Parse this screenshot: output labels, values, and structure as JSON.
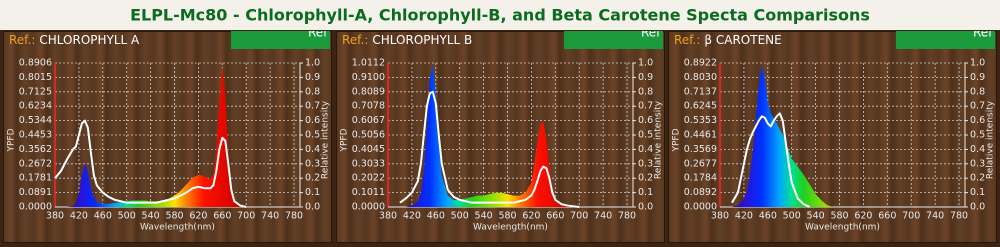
{
  "header": {
    "title": "ELPL-Mc80 - Chlorophyll-A, Chlorophyll-B, and Beta Carotene Specta Comparisons"
  },
  "chart_data": [
    {
      "type": "area",
      "ref_prefix": "Ref.:",
      "ref_name": "CHLOROPHYLL A",
      "button_label": "Ref",
      "x_label": "Wavelength(nm)",
      "y_label": "YPFD",
      "y2_label": "Relative intensity",
      "grid": true,
      "xlim": [
        380,
        790
      ],
      "xticks": [
        380,
        420,
        460,
        500,
        540,
        580,
        620,
        660,
        700,
        740,
        780
      ],
      "ylim": [
        0,
        0.8906
      ],
      "yticks": [
        {
          "value": 0,
          "label": "0.0000"
        },
        0.0891,
        0.1781,
        0.2672,
        0.3562,
        0.4453,
        0.5344,
        0.6234,
        0.7125,
        0.8015,
        0.8906
      ],
      "y2lim": [
        0,
        1
      ],
      "y2ticks": [
        {
          "value": 0,
          "label": "0.0"
        },
        0.1,
        0.2,
        0.3,
        0.4,
        0.5,
        0.6,
        0.7,
        0.8,
        0.9,
        {
          "value": 1,
          "label": "1.0"
        }
      ],
      "x": [
        380,
        390,
        400,
        410,
        415,
        420,
        425,
        430,
        435,
        440,
        445,
        450,
        460,
        470,
        480,
        490,
        500,
        510,
        520,
        530,
        540,
        550,
        560,
        570,
        580,
        590,
        600,
        610,
        620,
        630,
        640,
        645,
        650,
        655,
        660,
        665,
        670,
        675,
        680,
        690,
        700,
        720,
        740,
        760,
        780
      ],
      "series": [
        {
          "style": "area",
          "values": [
            0,
            0,
            0,
            0.005,
            0.02,
            0.08,
            0.2,
            0.27,
            0.22,
            0.12,
            0.06,
            0.03,
            0.02,
            0.02,
            0.025,
            0.03,
            0.035,
            0.04,
            0.04,
            0.04,
            0.035,
            0.035,
            0.04,
            0.05,
            0.07,
            0.1,
            0.14,
            0.18,
            0.2,
            0.19,
            0.17,
            0.2,
            0.35,
            0.65,
            0.87,
            0.7,
            0.35,
            0.12,
            0.05,
            0.01,
            0,
            0,
            0,
            0,
            0
          ]
        },
        {
          "style": "line",
          "color": "#ffffff",
          "axis": "y2",
          "values": [
            0.2,
            0.25,
            0.33,
            0.4,
            0.42,
            0.5,
            0.58,
            0.6,
            0.55,
            0.38,
            0.22,
            0.15,
            0.1,
            0.07,
            0.05,
            0.04,
            0.03,
            0.03,
            0.03,
            0.03,
            0.03,
            0.03,
            0.04,
            0.05,
            0.06,
            0.08,
            0.1,
            0.13,
            0.14,
            0.13,
            0.13,
            0.15,
            0.25,
            0.4,
            0.48,
            0.46,
            0.3,
            0.12,
            0.04,
            0.01,
            0,
            null,
            null,
            null,
            null
          ]
        }
      ]
    },
    {
      "type": "area",
      "ref_prefix": "Ref.:",
      "ref_name": "CHLOROPHYLL B",
      "button_label": "Ref",
      "x_label": "Wavelength(nm)",
      "y_label": "YPFD",
      "y2_label": "Relative intensity",
      "grid": true,
      "xlim": [
        380,
        790
      ],
      "xticks": [
        380,
        420,
        460,
        500,
        540,
        580,
        620,
        660,
        700,
        740,
        780
      ],
      "ylim": [
        0,
        1.0112
      ],
      "yticks": [
        {
          "value": 0,
          "label": "0.0000"
        },
        0.1011,
        0.2022,
        0.3033,
        0.4045,
        0.5056,
        0.6067,
        0.7078,
        0.8089,
        {
          "value": 0.91,
          "label": "0.9100"
        },
        1.0112
      ],
      "y2lim": [
        0,
        1
      ],
      "y2ticks": [
        {
          "value": 0,
          "label": "0.0"
        },
        0.1,
        0.2,
        0.3,
        0.4,
        0.5,
        0.6,
        0.7,
        0.8,
        0.9,
        {
          "value": 1,
          "label": "1.0"
        }
      ],
      "x": [
        380,
        390,
        400,
        410,
        420,
        430,
        435,
        440,
        445,
        450,
        455,
        460,
        465,
        470,
        480,
        490,
        500,
        510,
        520,
        530,
        540,
        550,
        560,
        570,
        580,
        590,
        600,
        610,
        620,
        625,
        630,
        635,
        640,
        645,
        650,
        655,
        660,
        670,
        680,
        700,
        720,
        740,
        760,
        780
      ],
      "series": [
        {
          "style": "area",
          "values": [
            0,
            0,
            0,
            0,
            0.01,
            0.04,
            0.1,
            0.25,
            0.55,
            0.9,
            1.0,
            0.8,
            0.45,
            0.22,
            0.08,
            0.05,
            0.05,
            0.06,
            0.07,
            0.08,
            0.08,
            0.09,
            0.1,
            0.1,
            0.09,
            0.08,
            0.08,
            0.1,
            0.17,
            0.3,
            0.45,
            0.58,
            0.6,
            0.48,
            0.28,
            0.12,
            0.05,
            0.02,
            0.01,
            0,
            0,
            0,
            0,
            0
          ]
        },
        {
          "style": "line",
          "color": "#ffffff",
          "axis": "y2",
          "values": [
            null,
            null,
            0.03,
            0.06,
            0.1,
            0.18,
            0.3,
            0.5,
            0.7,
            0.79,
            0.8,
            0.72,
            0.5,
            0.3,
            0.12,
            0.07,
            0.05,
            0.04,
            0.03,
            0.03,
            0.03,
            0.03,
            0.03,
            0.03,
            0.03,
            0.03,
            0.04,
            0.05,
            0.08,
            0.12,
            0.18,
            0.25,
            0.28,
            0.27,
            0.2,
            0.1,
            0.05,
            0.02,
            0.01,
            0,
            null,
            null,
            null,
            null
          ]
        }
      ]
    },
    {
      "type": "area",
      "ref_prefix": "Ref.:",
      "ref_name": "β CAROTENE",
      "button_label": "Ref",
      "x_label": "Wavelength(nm)",
      "y_label": "YPFD",
      "y2_label": "Relative intensity",
      "grid": true,
      "xlim": [
        380,
        790
      ],
      "xticks": [
        380,
        420,
        460,
        500,
        540,
        580,
        620,
        660,
        700,
        740,
        780
      ],
      "ylim": [
        0,
        0.8922
      ],
      "yticks": [
        {
          "value": 0,
          "label": "0.0000"
        },
        0.0892,
        0.1784,
        0.2677,
        0.3569,
        0.4461,
        0.5353,
        0.6245,
        0.7137,
        {
          "value": 0.803,
          "label": "0.8030"
        },
        0.8922
      ],
      "y2lim": [
        0,
        1
      ],
      "y2ticks": [
        {
          "value": 0,
          "label": "0.0"
        },
        0.1,
        0.2,
        0.3,
        0.4,
        0.5,
        0.6,
        0.7,
        0.8,
        0.9,
        {
          "value": 1,
          "label": "1.0"
        }
      ],
      "x": [
        380,
        390,
        400,
        410,
        420,
        425,
        430,
        435,
        440,
        445,
        450,
        455,
        460,
        465,
        470,
        475,
        480,
        485,
        490,
        495,
        500,
        510,
        520,
        530,
        540,
        550,
        560,
        570,
        580,
        600,
        640,
        680,
        720,
        760,
        780
      ],
      "series": [
        {
          "style": "area",
          "values": [
            0,
            0,
            0,
            0.01,
            0.05,
            0.1,
            0.2,
            0.35,
            0.55,
            0.75,
            0.88,
            0.8,
            0.65,
            0.58,
            0.55,
            0.52,
            0.48,
            0.45,
            0.4,
            0.35,
            0.3,
            0.25,
            0.2,
            0.14,
            0.08,
            0.04,
            0.01,
            0,
            0,
            0,
            0,
            0,
            0,
            0,
            0
          ]
        },
        {
          "style": "line",
          "color": "#ffffff",
          "axis": "y2",
          "values": [
            null,
            null,
            0.03,
            0.1,
            0.3,
            0.4,
            0.47,
            0.52,
            0.56,
            0.6,
            0.63,
            0.62,
            0.58,
            0.56,
            0.6,
            0.63,
            0.65,
            0.6,
            0.45,
            0.3,
            0.17,
            0.06,
            0.02,
            0,
            null,
            null,
            null,
            null,
            null,
            null,
            null,
            null,
            null,
            null,
            null
          ]
        }
      ]
    }
  ]
}
